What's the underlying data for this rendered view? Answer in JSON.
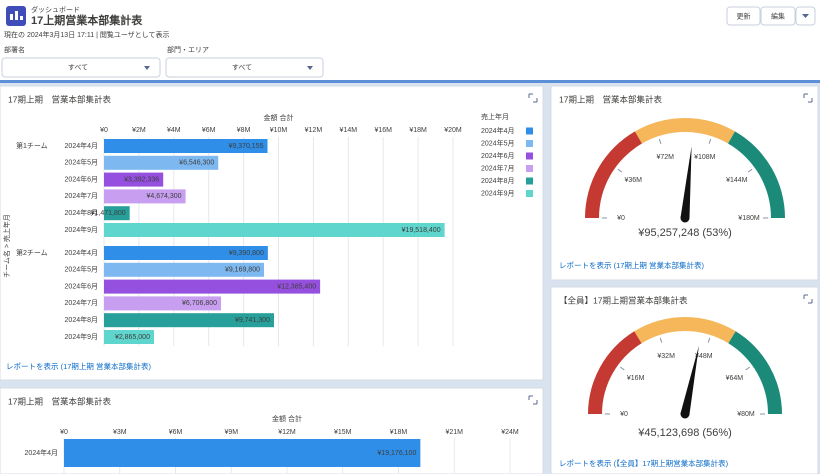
{
  "header": {
    "breadcrumb": "ダッシュボード",
    "title": "17上期営業本部集計表",
    "subtitle": "現在の 2024年3月13日 17:11 | 閲覧ユーザとして表示",
    "buttons": [
      "更新",
      "編集"
    ]
  },
  "filters": [
    {
      "label": "部署名",
      "value": "すべて"
    },
    {
      "label": "部門・エリア",
      "value": "すべて"
    }
  ],
  "chart_data": [
    {
      "type": "bar",
      "title": "17期上期　営業本部集計表",
      "x_label": "金額 合計",
      "y_label": "チーム名 > 売上年月",
      "legend_title": "売上年月",
      "legend": "right",
      "categories": [
        "第1チーム",
        "第2チーム"
      ],
      "series": [
        {
          "name": "2024年4月",
          "color": "#2f8fe8",
          "values": [
            9370155,
            9390800
          ],
          "value_labels": [
            "¥9,370,155",
            "¥9,390,800"
          ]
        },
        {
          "name": "2024年5月",
          "color": "#7db8f0",
          "values": [
            6546300,
            9169800
          ],
          "value_labels": [
            "¥6,546,300",
            "¥9,169,800"
          ]
        },
        {
          "name": "2024年6月",
          "color": "#9650e0",
          "values": [
            3392336,
            12385400
          ],
          "value_labels": [
            "¥3,392,336",
            "¥12,385,400"
          ]
        },
        {
          "name": "2024年7月",
          "color": "#c79ef0",
          "values": [
            4674300,
            6706800
          ],
          "value_labels": [
            "¥4,674,300",
            "¥6,706,800"
          ]
        },
        {
          "name": "2024年8月",
          "color": "#27a09b",
          "values": [
            1471800,
            9741300
          ],
          "value_labels": [
            "¥1,471,800",
            "¥9,741,300"
          ]
        },
        {
          "name": "2024年9月",
          "color": "#5ed6cd",
          "values": [
            19518400,
            2865000
          ],
          "value_labels": [
            "¥19,518,400",
            "¥2,865,000"
          ]
        }
      ],
      "xlim": [
        0,
        20000000
      ],
      "xticks": [
        {
          "value": 0,
          "label": "¥0"
        },
        {
          "value": 2000000,
          "label": "¥2M"
        },
        {
          "value": 4000000,
          "label": "¥4M"
        },
        {
          "value": 6000000,
          "label": "¥6M"
        },
        {
          "value": 8000000,
          "label": "¥8M"
        },
        {
          "value": 10000000,
          "label": "¥10M"
        },
        {
          "value": 12000000,
          "label": "¥12M"
        },
        {
          "value": 14000000,
          "label": "¥14M"
        },
        {
          "value": 16000000,
          "label": "¥16M"
        },
        {
          "value": 18000000,
          "label": "¥18M"
        },
        {
          "value": 20000000,
          "label": "¥20M"
        }
      ],
      "grid": true,
      "footer": "レポートを表示 (17期上期 営業本部集計表)"
    },
    {
      "type": "bar",
      "title": "17期上期　営業本部集計表",
      "x_label": "金額 合計",
      "categories": [
        "2024年4月"
      ],
      "values": [
        19176100
      ],
      "value_labels": [
        "¥19,176,100"
      ],
      "color": "#2f8fe8",
      "xlim": [
        0,
        24000000
      ],
      "xticks": [
        {
          "value": 0,
          "label": "¥0"
        },
        {
          "value": 3000000,
          "label": "¥3M"
        },
        {
          "value": 6000000,
          "label": "¥6M"
        },
        {
          "value": 9000000,
          "label": "¥9M"
        },
        {
          "value": 12000000,
          "label": "¥12M"
        },
        {
          "value": 15000000,
          "label": "¥15M"
        },
        {
          "value": 18000000,
          "label": "¥18M"
        },
        {
          "value": 21000000,
          "label": "¥21M"
        },
        {
          "value": 24000000,
          "label": "¥24M"
        }
      ],
      "grid": true
    },
    {
      "type": "gauge",
      "title": "17期上期　営業本部集計表",
      "value": 95257248,
      "value_label": "¥95,257,248 (53%)",
      "ylim": [
        0,
        180000000
      ],
      "yticks": [
        {
          "value": 0,
          "label": "¥0"
        },
        {
          "value": 36000000,
          "label": "¥36M"
        },
        {
          "value": 72000000,
          "label": "¥72M"
        },
        {
          "value": 108000000,
          "label": "¥108M"
        },
        {
          "value": 144000000,
          "label": "¥144M"
        },
        {
          "value": 180000000,
          "label": "¥180M"
        }
      ],
      "bands": [
        {
          "from": 0,
          "to": 60000000,
          "color": "#c43a33"
        },
        {
          "from": 60000000,
          "to": 120000000,
          "color": "#f5b75a"
        },
        {
          "from": 120000000,
          "to": 180000000,
          "color": "#1b8a78"
        }
      ],
      "footer": "レポートを表示 (17期上期 営業本部集計表)"
    },
    {
      "type": "gauge",
      "title": "【全員】17期上期営業本部集計表",
      "value": 45123698,
      "value_label": "¥45,123,698 (56%)",
      "ylim": [
        0,
        80000000
      ],
      "yticks": [
        {
          "value": 0,
          "label": "¥0"
        },
        {
          "value": 16000000,
          "label": "¥16M"
        },
        {
          "value": 32000000,
          "label": "¥32M"
        },
        {
          "value": 48000000,
          "label": "¥48M"
        },
        {
          "value": 64000000,
          "label": "¥64M"
        },
        {
          "value": 80000000,
          "label": "¥80M"
        }
      ],
      "bands": [
        {
          "from": 0,
          "to": 26000000,
          "color": "#c43a33"
        },
        {
          "from": 26000000,
          "to": 54000000,
          "color": "#f5b75a"
        },
        {
          "from": 54000000,
          "to": 80000000,
          "color": "#1b8a78"
        }
      ],
      "footer": "レポートを表示 (【全員】17期上期営業本部集計表)"
    }
  ]
}
